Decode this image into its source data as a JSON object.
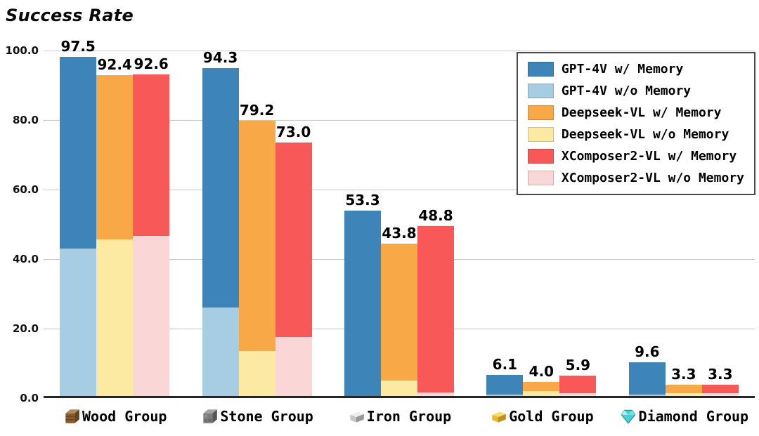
{
  "chart_data": {
    "type": "bar",
    "title": "Success Rate",
    "categories": [
      "Wood Group",
      "Stone Group",
      "Iron Group",
      "Gold Group",
      "Diamond Group"
    ],
    "category_icons": [
      "wood-block-icon",
      "stone-block-icon",
      "iron-ingot-icon",
      "gold-ingot-icon",
      "diamond-icon"
    ],
    "ylim": [
      0,
      100
    ],
    "yticks": [
      "100.0",
      "80.0",
      "60.0",
      "40.0",
      "20.0",
      "0.0"
    ],
    "grid": true,
    "legend_position": "top-right",
    "series": [
      {
        "name": "GPT-4V w/ Memory",
        "color": "#3d85b8",
        "labeled": true,
        "values": [
          97.5,
          94.3,
          53.3,
          6.1,
          9.6
        ]
      },
      {
        "name": "GPT-4V w/o Memory",
        "color": "#a7cde2",
        "labeled": false,
        "values": [
          42.5,
          25.5,
          0.0,
          0.5,
          0.5
        ]
      },
      {
        "name": "Deepseek-VL w/ Memory",
        "color": "#f9a848",
        "labeled": true,
        "values": [
          92.4,
          79.2,
          43.8,
          4.0,
          3.3
        ]
      },
      {
        "name": "Deepseek-VL w/o Memory",
        "color": "#fce9a2",
        "labeled": false,
        "values": [
          45.0,
          13.0,
          4.5,
          1.5,
          0.8
        ]
      },
      {
        "name": "XComposer2-VL w/ Memory",
        "color": "#f95858",
        "labeled": true,
        "values": [
          92.6,
          73.0,
          48.8,
          5.9,
          3.3
        ]
      },
      {
        "name": "XComposer2-VL w/o Memory",
        "color": "#fad6d6",
        "labeled": false,
        "values": [
          46.0,
          17.0,
          1.0,
          0.8,
          0.8
        ]
      }
    ]
  }
}
